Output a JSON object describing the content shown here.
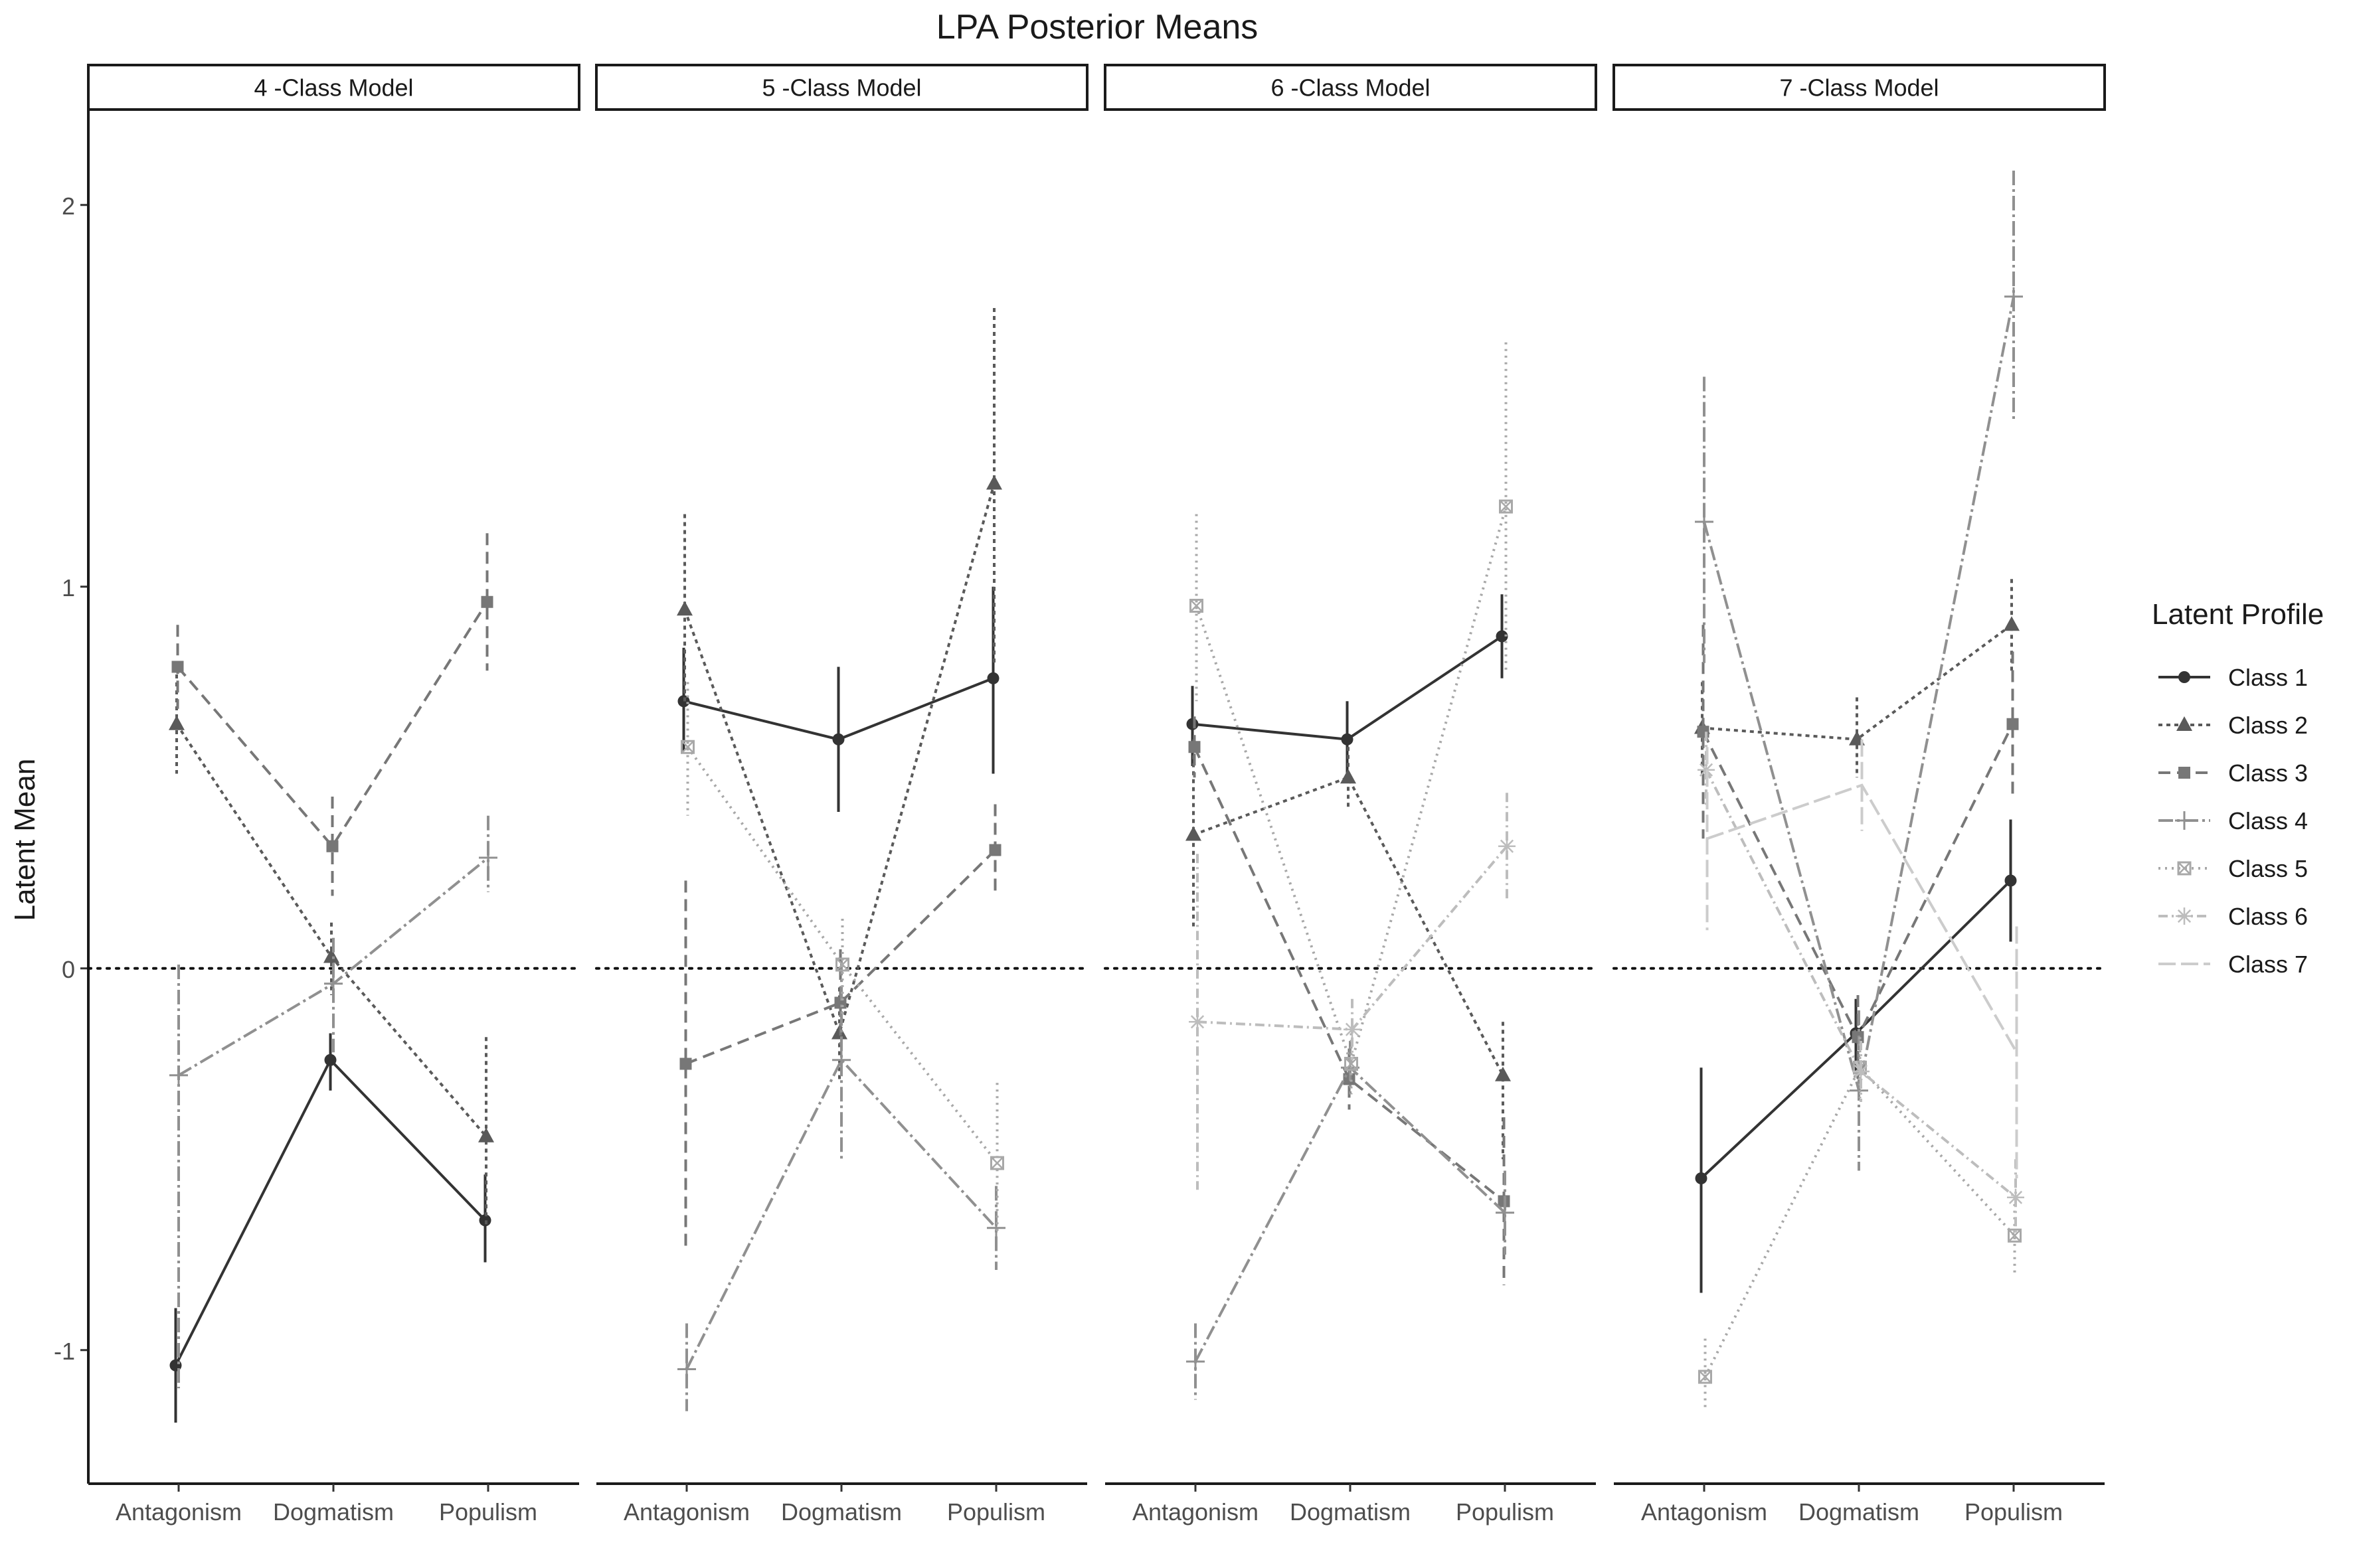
{
  "chart_data": {
    "type": "line",
    "title": "LPA Posterior Means",
    "ylabel": "Latent Mean",
    "xlabel": "",
    "categories": [
      "Antagonism",
      "Dogmatism",
      "Populism"
    ],
    "ylim": [
      -1.35,
      2.25
    ],
    "yticks": [
      -1,
      0,
      1,
      2
    ],
    "reference_line": 0,
    "grid": false,
    "legend": {
      "title": "Latent Profile",
      "placement": "right",
      "entries": [
        "Class 1",
        "Class 2",
        "Class 3",
        "Class 4",
        "Class 5",
        "Class 6",
        "Class 7"
      ]
    },
    "class_styles": [
      {
        "name": "Class 1",
        "color": "#333333",
        "dash": "",
        "shape": "circle"
      },
      {
        "name": "Class 2",
        "color": "#5a5a5a",
        "dash": "6,6",
        "shape": "triangle"
      },
      {
        "name": "Class 3",
        "color": "#777777",
        "dash": "18,10",
        "shape": "square"
      },
      {
        "name": "Class 4",
        "color": "#909090",
        "dash": "22,6,4,6",
        "shape": "plus"
      },
      {
        "name": "Class 5",
        "color": "#a8a8a8",
        "dash": "3,7",
        "shape": "squarex"
      },
      {
        "name": "Class 6",
        "color": "#bdbdbd",
        "dash": "14,6,3,6",
        "shape": "asterisk"
      },
      {
        "name": "Class 7",
        "color": "#cccccc",
        "dash": "26,8",
        "shape": "none"
      }
    ],
    "panels": [
      {
        "label": "4 -Class Model",
        "series": [
          {
            "class": 1,
            "values": [
              -1.04,
              -0.24,
              -0.66
            ],
            "lower": [
              -1.19,
              -0.32,
              -0.77
            ],
            "upper": [
              -0.89,
              -0.17,
              -0.54
            ]
          },
          {
            "class": 2,
            "values": [
              0.64,
              0.03,
              -0.44
            ],
            "lower": [
              0.51,
              -0.07,
              -0.68
            ],
            "upper": [
              0.77,
              0.12,
              -0.18
            ]
          },
          {
            "class": 3,
            "values": [
              0.79,
              0.32,
              0.96
            ],
            "lower": [
              0.68,
              0.19,
              0.78
            ],
            "upper": [
              0.9,
              0.45,
              1.14
            ]
          },
          {
            "class": 4,
            "values": [
              -0.28,
              -0.04,
              0.29
            ],
            "lower": [
              -1.1,
              -0.22,
              0.2
            ],
            "upper": [
              0.01,
              0.08,
              0.4
            ]
          }
        ]
      },
      {
        "label": "5 -Class Model",
        "series": [
          {
            "class": 1,
            "values": [
              0.7,
              0.6,
              0.76
            ],
            "lower": [
              0.57,
              0.41,
              0.51
            ],
            "upper": [
              0.84,
              0.79,
              1.0
            ]
          },
          {
            "class": 2,
            "values": [
              0.94,
              -0.17,
              1.27
            ],
            "lower": [
              0.69,
              -0.29,
              0.8
            ],
            "upper": [
              1.19,
              -0.05,
              1.73
            ]
          },
          {
            "class": 3,
            "values": [
              -0.25,
              -0.09,
              0.31
            ],
            "lower": [
              -0.73,
              -0.2,
              0.19
            ],
            "upper": [
              0.23,
              0.05,
              0.43
            ]
          },
          {
            "class": 4,
            "values": [
              -1.05,
              -0.24,
              -0.68
            ],
            "lower": [
              -1.16,
              -0.5,
              -0.79
            ],
            "upper": [
              -0.93,
              0.02,
              -0.57
            ]
          },
          {
            "class": 5,
            "values": [
              0.58,
              0.01,
              -0.51
            ],
            "lower": [
              0.4,
              -0.12,
              -0.7
            ],
            "upper": [
              0.75,
              0.13,
              -0.3
            ]
          }
        ]
      },
      {
        "label": "6 -Class Model",
        "series": [
          {
            "class": 1,
            "values": [
              0.64,
              0.6,
              0.87
            ],
            "lower": [
              0.53,
              0.5,
              0.76
            ],
            "upper": [
              0.74,
              0.7,
              0.98
            ]
          },
          {
            "class": 2,
            "values": [
              0.35,
              0.5,
              -0.28
            ],
            "lower": [
              0.11,
              0.42,
              -0.5
            ],
            "upper": [
              0.6,
              0.58,
              -0.14
            ]
          },
          {
            "class": 3,
            "values": [
              0.58,
              -0.29,
              -0.61
            ],
            "lower": [
              0.5,
              -0.37,
              -0.83
            ],
            "upper": [
              0.66,
              -0.21,
              -0.39
            ]
          },
          {
            "class": 4,
            "values": [
              -1.03,
              -0.26,
              -0.64
            ],
            "lower": [
              -1.13,
              -0.33,
              -0.75
            ],
            "upper": [
              -0.93,
              -0.19,
              -0.53
            ]
          },
          {
            "class": 5,
            "values": [
              0.95,
              -0.25,
              1.21
            ],
            "lower": [
              0.7,
              -0.33,
              0.78
            ],
            "upper": [
              1.19,
              -0.17,
              1.64
            ]
          },
          {
            "class": 6,
            "values": [
              -0.14,
              -0.16,
              0.32
            ],
            "lower": [
              -0.58,
              -0.24,
              0.18
            ],
            "upper": [
              0.3,
              -0.08,
              0.46
            ]
          }
        ]
      },
      {
        "label": "7 -Class Model",
        "series": [
          {
            "class": 1,
            "values": [
              -0.55,
              -0.17,
              0.23
            ],
            "lower": [
              -0.85,
              -0.27,
              0.07
            ],
            "upper": [
              -0.26,
              -0.08,
              0.39
            ]
          },
          {
            "class": 2,
            "values": [
              0.63,
              0.6,
              0.9
            ],
            "lower": [
              0.51,
              0.5,
              0.77
            ],
            "upper": [
              0.75,
              0.71,
              1.02
            ]
          },
          {
            "class": 3,
            "values": [
              0.62,
              -0.18,
              0.64
            ],
            "lower": [
              0.34,
              -0.29,
              0.45
            ],
            "upper": [
              0.9,
              -0.07,
              0.83
            ]
          },
          {
            "class": 4,
            "values": [
              1.17,
              -0.32,
              1.76
            ],
            "lower": [
              0.8,
              -0.53,
              1.43
            ],
            "upper": [
              1.55,
              -0.11,
              2.09
            ]
          },
          {
            "class": 5,
            "values": [
              -1.07,
              -0.26,
              -0.7
            ],
            "lower": [
              -1.16,
              -0.34,
              -0.8
            ],
            "upper": [
              -0.97,
              -0.18,
              -0.6
            ]
          },
          {
            "class": 6,
            "values": [
              0.52,
              -0.27,
              -0.6
            ],
            "lower": [
              0.42,
              -0.35,
              -0.7
            ],
            "upper": [
              0.62,
              -0.19,
              -0.5
            ]
          },
          {
            "class": 7,
            "values": [
              0.34,
              0.48,
              -0.22
            ],
            "lower": [
              0.1,
              0.36,
              -0.55
            ],
            "upper": [
              0.58,
              0.6,
              0.11
            ]
          }
        ]
      }
    ]
  }
}
